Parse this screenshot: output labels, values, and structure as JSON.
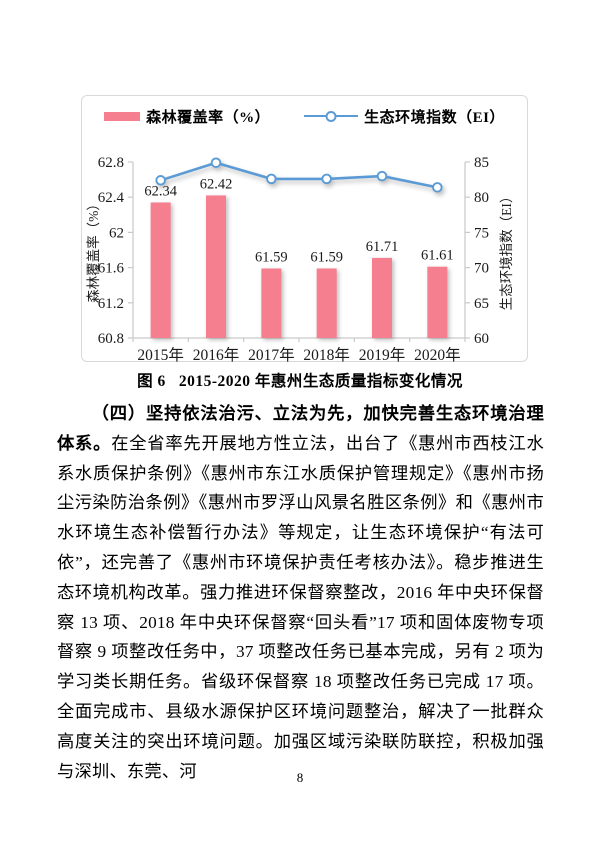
{
  "chart_data": {
    "type": "bar+line",
    "categories": [
      "2015年",
      "2016年",
      "2017年",
      "2018年",
      "2019年",
      "2020年"
    ],
    "series": [
      {
        "name": "森林覆盖率（%）",
        "type": "bar",
        "axis": "left",
        "values": [
          62.34,
          62.42,
          61.59,
          61.59,
          61.71,
          61.61
        ],
        "labels": [
          "62.34",
          "62.42",
          "61.59",
          "61.59",
          "61.71",
          "61.61"
        ],
        "color": "#f57f8f"
      },
      {
        "name": "生态环境指数（EI）",
        "type": "line",
        "axis": "right",
        "values": [
          82.4,
          84.9,
          82.6,
          82.6,
          83.0,
          81.4
        ],
        "color": "#5b9bd5",
        "marker": "open-circle"
      }
    ],
    "left_axis": {
      "title": "森林覆盖率（%）",
      "min": 60.8,
      "max": 62.8,
      "ticks": [
        "62.8",
        "62.4",
        "62",
        "61.6",
        "61.2",
        "60.8"
      ]
    },
    "right_axis": {
      "title": "生态环境指数（EI）",
      "min": 60,
      "max": 85,
      "ticks": [
        "85",
        "80",
        "75",
        "70",
        "65",
        "60"
      ]
    },
    "grid": false,
    "legend_position": "top"
  },
  "caption": "图 6   2015-2020 年惠州生态质量指标变化情况",
  "paragraph": {
    "lead": "（四）坚持依法治污、立法为先，加快完善生态环境治理体系。",
    "rest": "在全省率先开展地方性立法，出台了《惠州市西枝江水系水质保护条例》《惠州市东江水质保护管理规定》《惠州市扬尘污染防治条例》《惠州市罗浮山风景名胜区条例》和《惠州市水环境生态补偿暂行办法》等规定，让生态环境保护“有法可依”，还完善了《惠州市环境保护责任考核办法》。稳步推进生态环境机构改革。强力推进环保督察整改，2016 年中央环保督察 13 项、2018 年中央环保督察“回头看”17 项和固体废物专项督察 9 项整改任务中，37 项整改任务已基本完成，另有 2 项为学习类长期任务。省级环保督察 18 项整改任务已完成 17 项。全面完成市、县级水源保护区环境问题整治，解决了一批群众高度关注的突出环境问题。加强区域污染联防联控，积极加强与深圳、东莞、河"
  },
  "page_number": "8"
}
